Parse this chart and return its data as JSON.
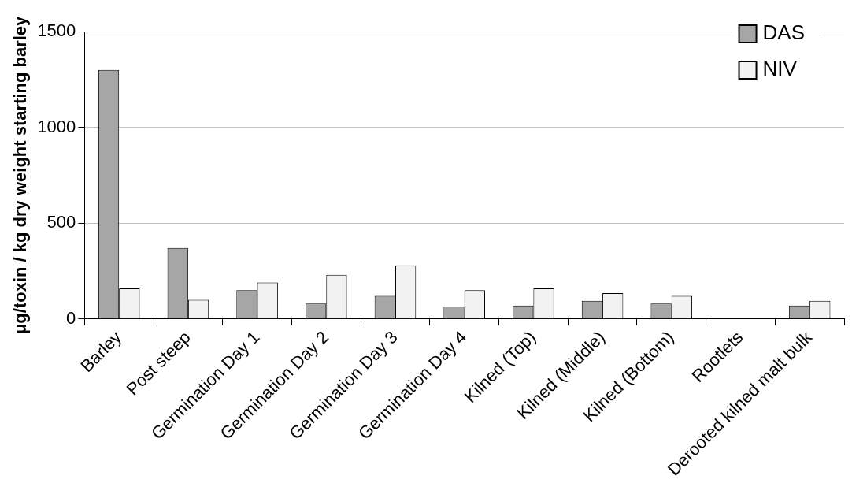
{
  "chart_data": {
    "type": "bar",
    "ylabel": "μg/toxin / kg dry weight starting barley",
    "categories": [
      "Barley",
      "Post steep",
      "Germination Day 1",
      "Germination Day 2",
      "Germination Day 3",
      "Germination Day 4",
      "Kilned (Top)",
      "Kilned (Middle)",
      "Kilned (Bottom)",
      "Rootlets",
      "Derooted kilned malt bulk"
    ],
    "series": [
      {
        "name": "DAS",
        "color": "#a6a6a6",
        "values": [
          1300,
          370,
          150,
          80,
          120,
          65,
          70,
          95,
          80,
          null,
          70
        ]
      },
      {
        "name": "NIV",
        "color": "#f2f2f2",
        "values": [
          160,
          100,
          190,
          230,
          280,
          150,
          160,
          135,
          120,
          null,
          95
        ]
      }
    ],
    "ylim": [
      0,
      1500
    ],
    "yticks": [
      0,
      500,
      1000,
      1500
    ],
    "grid": "y",
    "legend": "top right"
  }
}
